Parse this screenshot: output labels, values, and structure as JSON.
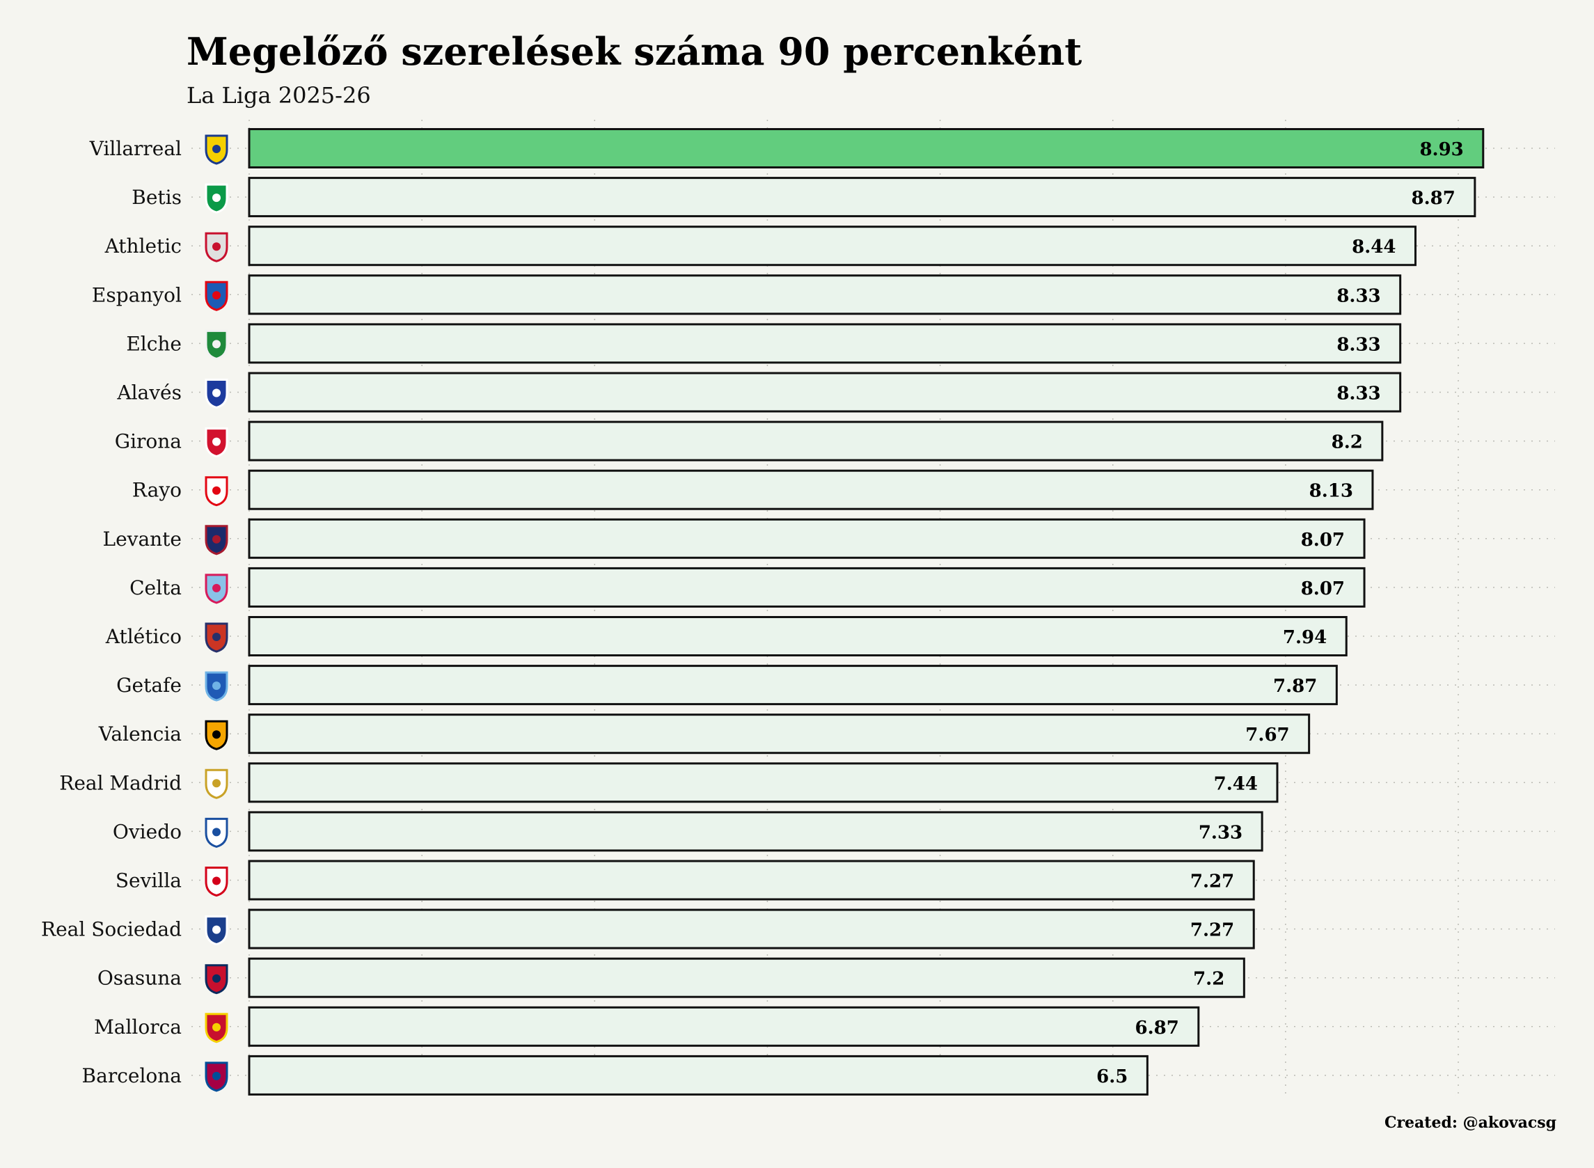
{
  "chart_data": {
    "type": "bar",
    "orientation": "horizontal",
    "title": "Megelőző szerelések száma 90 percenként",
    "subtitle": "La Liga 2025-26",
    "credit": "Created: @akovacsg",
    "xlabel": "",
    "ylabel": "",
    "xlim": [
      0,
      9.45
    ],
    "grid": true,
    "grid_step": 1.25,
    "highlight_color": "#62cd7e",
    "bar_color": "#eaf4ec",
    "background": "#f5f5f0",
    "categories": [
      "Villarreal",
      "Betis",
      "Athletic",
      "Espanyol",
      "Elche",
      "Alavés",
      "Girona",
      "Rayo",
      "Levante",
      "Celta",
      "Atlético",
      "Getafe",
      "Valencia",
      "Real Madrid",
      "Oviedo",
      "Sevilla",
      "Real Sociedad",
      "Osasuna",
      "Mallorca",
      "Barcelona"
    ],
    "values": [
      8.93,
      8.87,
      8.44,
      8.33,
      8.33,
      8.33,
      8.2,
      8.13,
      8.07,
      8.07,
      7.94,
      7.87,
      7.67,
      7.44,
      7.33,
      7.27,
      7.27,
      7.2,
      6.87,
      6.5
    ],
    "value_labels": [
      "8.93",
      "8.87",
      "8.44",
      "8.33",
      "8.33",
      "8.33",
      "8.2",
      "8.13",
      "8.07",
      "8.07",
      "7.94",
      "7.87",
      "7.67",
      "7.44",
      "7.33",
      "7.27",
      "7.27",
      "7.2",
      "6.87",
      "6.5"
    ],
    "logo_colors": [
      [
        "#f5d000",
        "#1a3a8c"
      ],
      [
        "#0b9a48",
        "#ffffff"
      ],
      [
        "#e0e0e0",
        "#c8102e"
      ],
      [
        "#1c5bb5",
        "#e30613"
      ],
      [
        "#1f8a3c",
        "#f2f2f2"
      ],
      [
        "#1d3b9e",
        "#ffffff"
      ],
      [
        "#d2122e",
        "#ffffff"
      ],
      [
        "#ffffff",
        "#e30613"
      ],
      [
        "#1b2a6b",
        "#a6192e"
      ],
      [
        "#8ac2e8",
        "#d71a5a"
      ],
      [
        "#cb3524",
        "#27306b"
      ],
      [
        "#1f5ab5",
        "#6fb3e6"
      ],
      [
        "#f5a500",
        "#000000"
      ],
      [
        "#ffffff",
        "#c9a227"
      ],
      [
        "#ffffff",
        "#1a4fa0"
      ],
      [
        "#ffffff",
        "#d4001a"
      ],
      [
        "#1b3f8c",
        "#ffffff"
      ],
      [
        "#c8102e",
        "#0a2a5e"
      ],
      [
        "#c8102e",
        "#f5d000"
      ],
      [
        "#a50044",
        "#004d98"
      ]
    ]
  }
}
